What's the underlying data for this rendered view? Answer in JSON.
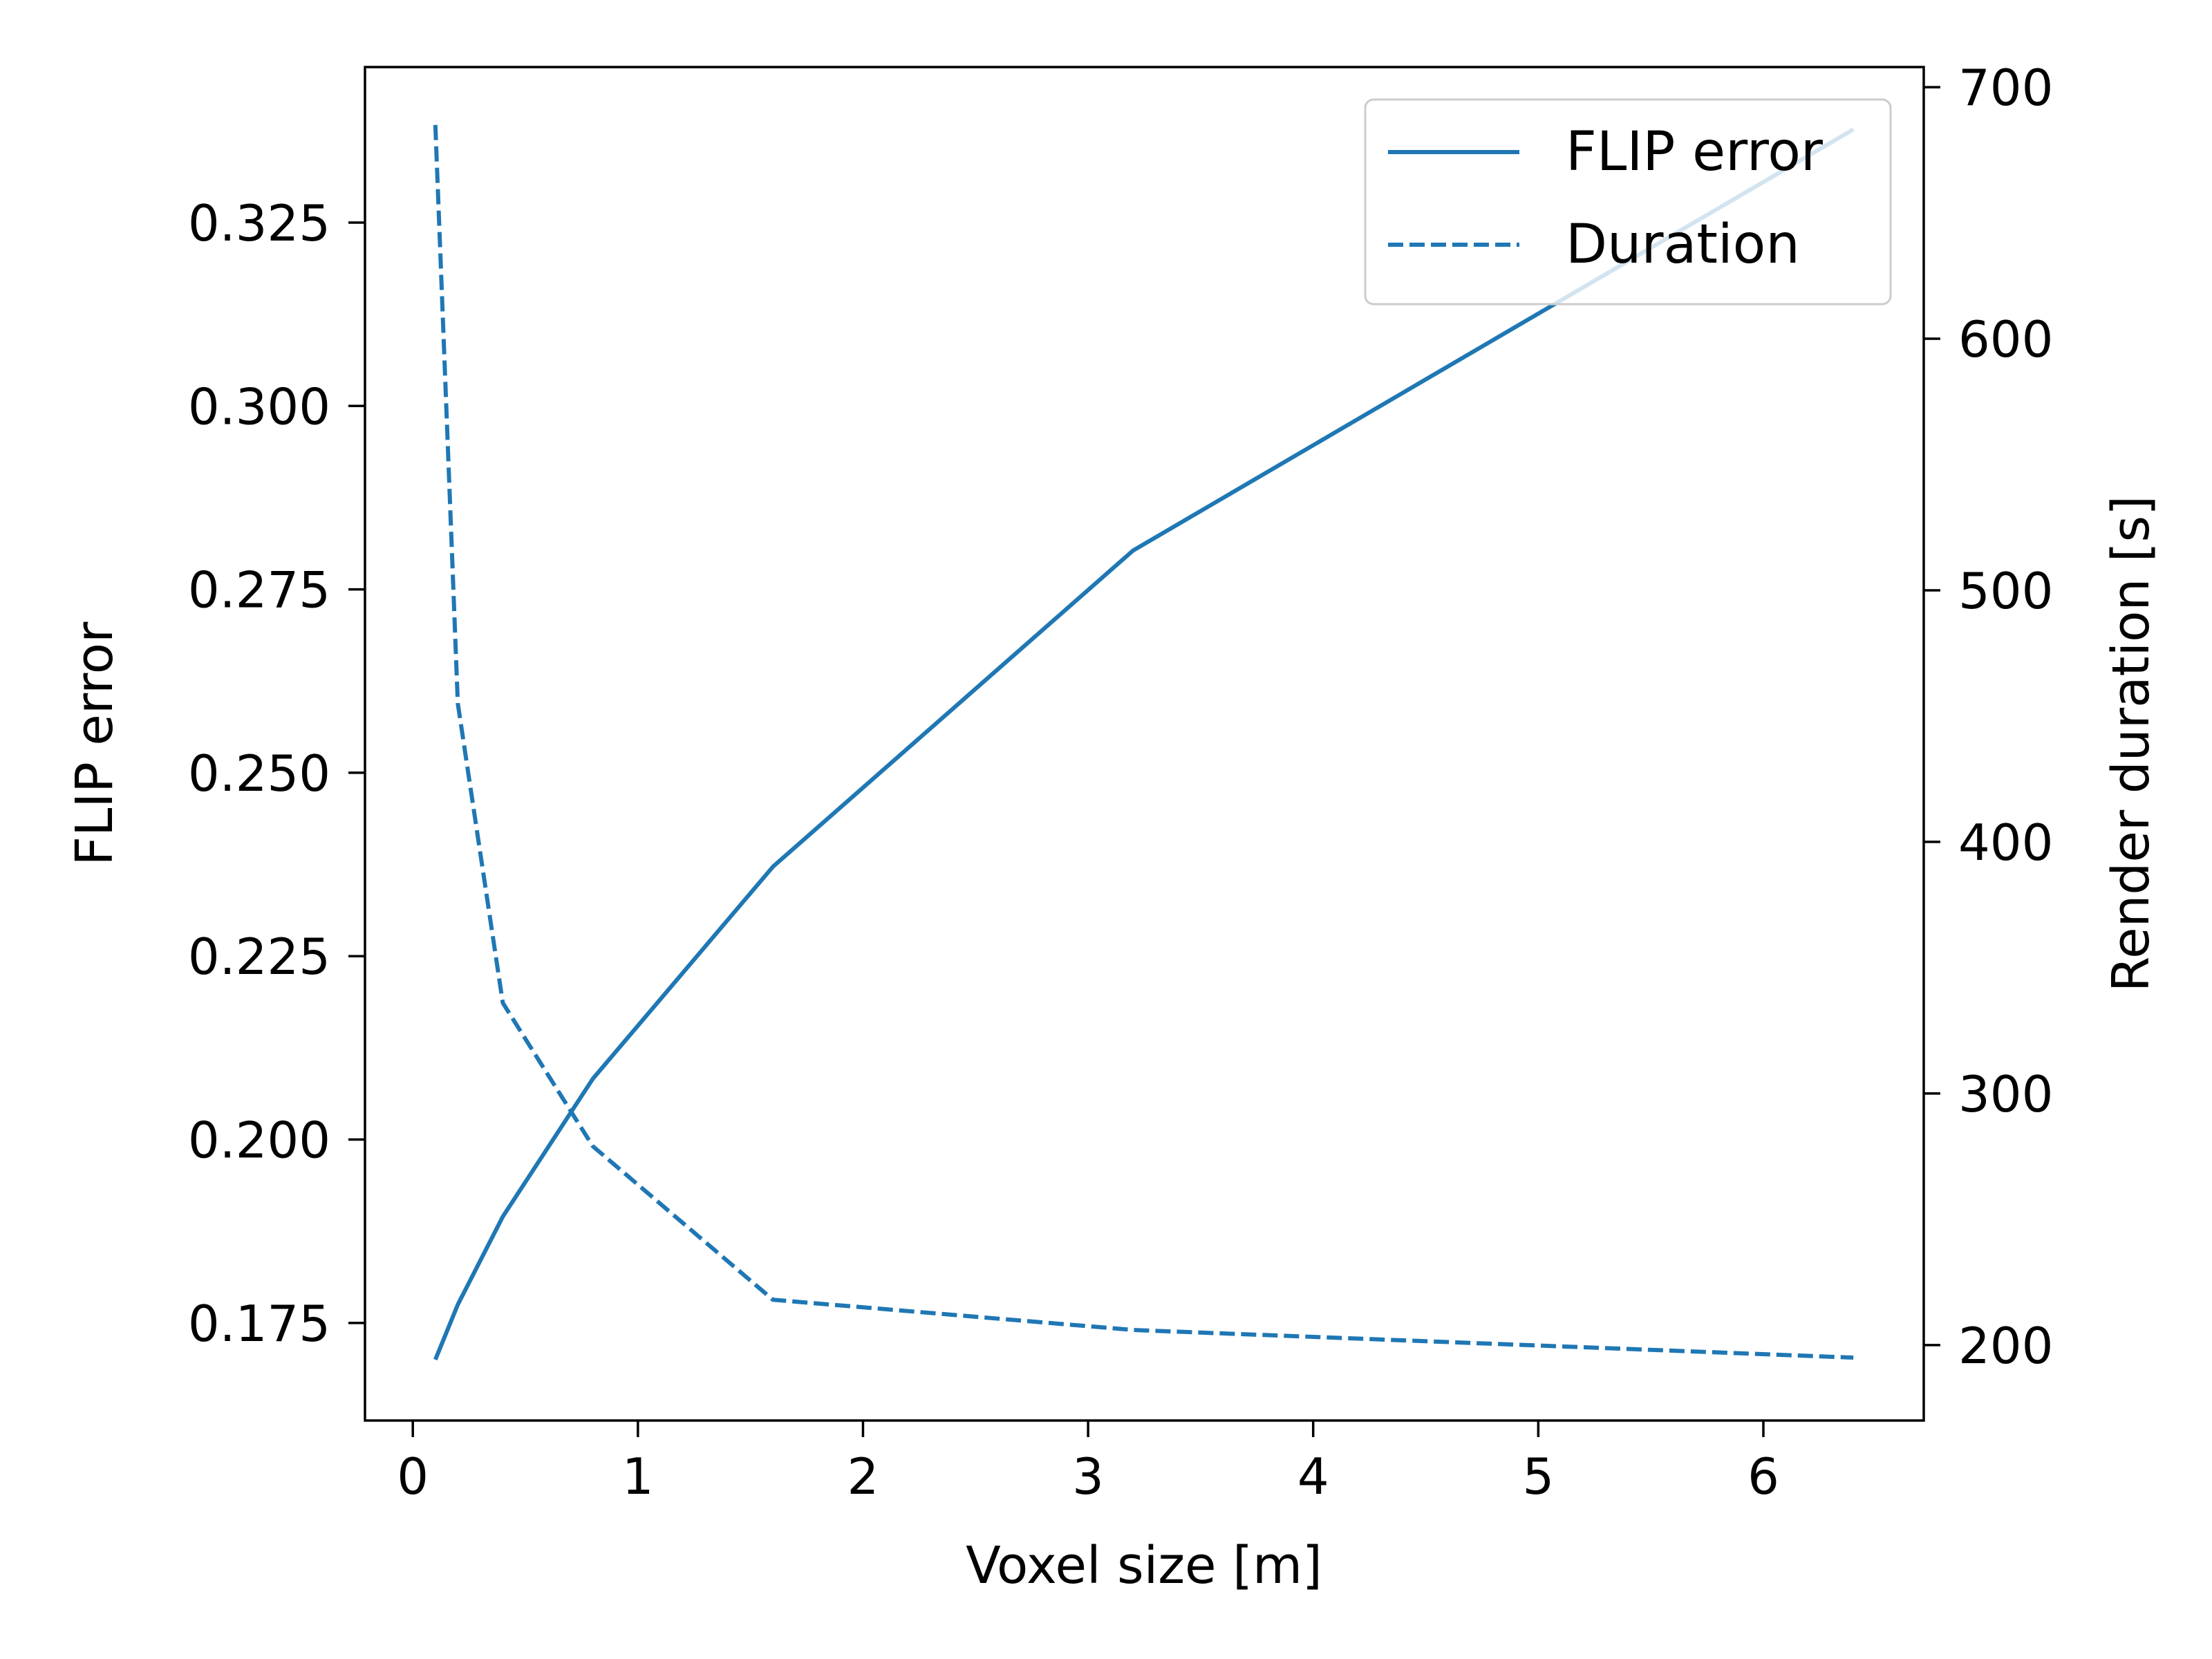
{
  "chart_data": {
    "type": "line",
    "title": "",
    "xlabel": "Voxel size [m]",
    "ylabel_left": "FLIP error",
    "ylabel_right": "Render duration [s]",
    "xlim": [
      -0.2125,
      6.7125
    ],
    "ylim_left": [
      0.1617,
      0.3462
    ],
    "ylim_right": [
      170,
      708
    ],
    "x_ticks": [
      0,
      1,
      2,
      3,
      4,
      5,
      6
    ],
    "y_left_ticks": [
      0.175,
      0.2,
      0.225,
      0.25,
      0.275,
      0.3,
      0.325
    ],
    "y_left_tick_labels": [
      "0.175",
      "0.200",
      "0.225",
      "0.250",
      "0.275",
      "0.300",
      "0.325"
    ],
    "y_right_ticks": [
      200,
      300,
      400,
      500,
      600,
      700
    ],
    "grid": false,
    "legend_position": "upper right",
    "color": "#1f77b4",
    "series": [
      {
        "name": "FLIP error",
        "axis": "left",
        "style": "solid",
        "x": [
          0.1,
          0.2,
          0.4,
          0.8,
          1.6,
          3.2,
          6.4
        ],
        "values": [
          0.17,
          0.1775,
          0.1895,
          0.2083,
          0.2372,
          0.2803,
          0.3377
        ]
      },
      {
        "name": "Duration",
        "axis": "right",
        "style": "dashed",
        "x": [
          0.1,
          0.2,
          0.4,
          0.8,
          1.6,
          3.2,
          6.4
        ],
        "values": [
          685,
          455,
          336,
          279,
          218,
          206,
          195
        ]
      }
    ]
  }
}
